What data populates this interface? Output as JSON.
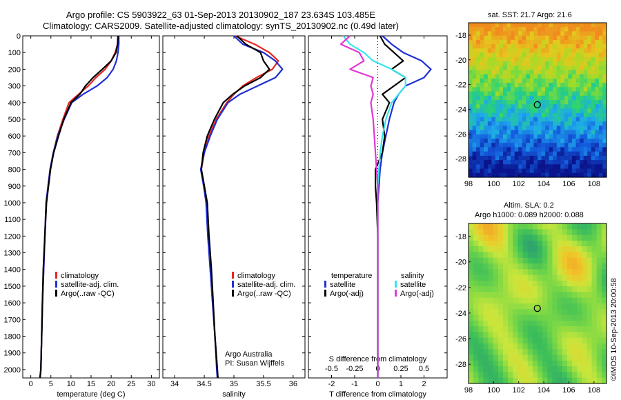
{
  "header": {
    "title_line1": "Argo profile: CS 5903922_63 01-Sep-2013 20130902_187 23.634S 103.485E",
    "title_line2": "Climatology: CARS2009. Satellite-adjusted climatology: synTS_20130902.nc (0.49d later)"
  },
  "colors": {
    "climatology": "#e8251f",
    "satellite": "#1f2fd6",
    "argo": "#000000",
    "satellite_s": "#36e6ea",
    "argo_s": "#e436d6"
  },
  "depth_ticks": [
    0,
    100,
    200,
    300,
    400,
    500,
    600,
    700,
    800,
    900,
    1000,
    1100,
    1200,
    1300,
    1400,
    1500,
    1600,
    1700,
    1800,
    1900,
    2000
  ],
  "chart_data": [
    {
      "type": "line",
      "xlabel": "temperature (deg C)",
      "xlim": [
        -2,
        32
      ],
      "ylim": [
        0,
        2050
      ],
      "xticks": [
        0,
        5,
        10,
        15,
        20,
        25,
        30
      ],
      "legend": [
        "climatology",
        "satellite-adj. clim.",
        "Argo(..raw -QC)"
      ],
      "series": [
        {
          "name": "climatology",
          "color": "#e8251f",
          "x": [
            21.7,
            21.6,
            21.0,
            20.0,
            18.5,
            16.2,
            14.3,
            11.9,
            9.5,
            8.0,
            6.6,
            5.6,
            4.8,
            4.3,
            3.8,
            3.5,
            3.2,
            2.9,
            2.7,
            2.5,
            2.3
          ],
          "y": [
            0,
            50,
            100,
            150,
            200,
            250,
            300,
            350,
            400,
            500,
            600,
            700,
            800,
            900,
            1000,
            1200,
            1400,
            1600,
            1800,
            2000,
            2050
          ]
        },
        {
          "name": "satellite-adj. clim.",
          "color": "#1f2fd6",
          "x": [
            21.9,
            21.9,
            21.7,
            21.3,
            20.5,
            19.0,
            16.5,
            13.0,
            10.2,
            8.3,
            6.7,
            5.6,
            4.8,
            4.3,
            3.8,
            3.5,
            3.2,
            2.9,
            2.7,
            2.5,
            2.3
          ],
          "y": [
            0,
            50,
            100,
            150,
            200,
            250,
            300,
            350,
            400,
            500,
            600,
            700,
            800,
            900,
            1000,
            1200,
            1400,
            1600,
            1800,
            2000,
            2050
          ]
        },
        {
          "name": "Argo(..raw -QC)",
          "color": "#000000",
          "x": [
            21.7,
            21.6,
            21.2,
            20.0,
            17.8,
            15.5,
            13.6,
            12.2,
            10.0,
            8.2,
            6.9,
            5.7,
            4.9,
            4.4,
            3.9,
            3.5,
            3.1,
            2.9,
            2.7,
            2.5,
            2.3
          ],
          "y": [
            0,
            50,
            100,
            150,
            200,
            250,
            300,
            350,
            400,
            500,
            600,
            700,
            800,
            900,
            1000,
            1200,
            1400,
            1600,
            1800,
            2000,
            2050
          ]
        }
      ]
    },
    {
      "type": "line",
      "xlabel": "salinity",
      "xlim": [
        33.8,
        36.2
      ],
      "ylim": [
        0,
        2050
      ],
      "xticks": [
        34,
        34.5,
        35,
        35.5,
        36
      ],
      "legend": [
        "climatology",
        "satellite-adj. clim.",
        "Argo(..raw -QC)"
      ],
      "annotation": [
        "Argo Australia",
        "PI: Susan Wijffels"
      ],
      "series": [
        {
          "name": "climatology",
          "color": "#e8251f",
          "x": [
            35.02,
            35.35,
            35.6,
            35.75,
            35.65,
            35.38,
            35.15,
            35.0,
            34.88,
            34.7,
            34.58,
            34.5,
            34.45,
            34.5,
            34.54,
            34.57,
            34.6,
            34.64,
            34.68,
            34.72,
            34.73
          ],
          "y": [
            0,
            50,
            100,
            150,
            200,
            250,
            300,
            350,
            400,
            500,
            600,
            700,
            800,
            900,
            1000,
            1200,
            1400,
            1600,
            1800,
            2000,
            2050
          ]
        },
        {
          "name": "satellite-adj. clim.",
          "color": "#1f2fd6",
          "x": [
            35.0,
            35.15,
            35.5,
            35.7,
            35.82,
            35.7,
            35.4,
            35.1,
            34.9,
            34.72,
            34.6,
            34.5,
            34.44,
            34.49,
            34.53,
            34.56,
            34.6,
            34.64,
            34.68,
            34.71,
            34.72
          ],
          "y": [
            0,
            50,
            100,
            150,
            200,
            250,
            300,
            350,
            400,
            500,
            600,
            700,
            800,
            900,
            1000,
            1200,
            1400,
            1600,
            1800,
            2000,
            2050
          ]
        },
        {
          "name": "Argo(..raw -QC)",
          "color": "#000000",
          "x": [
            35.05,
            35.2,
            35.45,
            35.5,
            35.6,
            35.45,
            35.18,
            34.98,
            34.82,
            34.67,
            34.55,
            34.48,
            34.45,
            34.5,
            34.55,
            34.58,
            34.62,
            34.65,
            34.68,
            34.72,
            34.73
          ],
          "y": [
            0,
            50,
            100,
            150,
            200,
            250,
            300,
            350,
            400,
            500,
            600,
            700,
            800,
            900,
            1000,
            1200,
            1400,
            1600,
            1800,
            2000,
            2050
          ]
        }
      ]
    },
    {
      "type": "line",
      "xlabel": "T difference from climatology",
      "title": "S difference from climatology",
      "xlim": [
        -3,
        3
      ],
      "ylim": [
        0,
        2050
      ],
      "xticks": [
        -2,
        -1,
        0,
        1,
        2
      ],
      "top_xticks": [
        -0.5,
        -0.25,
        0,
        0.25,
        0.5
      ],
      "top_xticklabels": [
        "-0.5",
        "-0.25",
        "0",
        "0.25",
        "0.5"
      ],
      "legend_groups": [
        "temperature",
        "salinity"
      ],
      "legend": [
        "satellite",
        "Argo(-adj)",
        "satellite",
        "Argo(-adj)"
      ],
      "series": [
        {
          "name": "temperature satellite",
          "color": "#1f2fd6",
          "x": [
            0.2,
            0.6,
            1.1,
            1.9,
            2.3,
            2.0,
            1.2,
            0.9,
            0.7,
            0.5,
            0.35,
            0.2,
            0.1,
            0.05,
            0.0,
            0.0,
            0.0,
            0.0,
            0.0,
            0.0,
            0.0
          ],
          "y": [
            0,
            50,
            100,
            150,
            200,
            250,
            300,
            350,
            400,
            500,
            600,
            700,
            800,
            900,
            1000,
            1200,
            1400,
            1600,
            1800,
            2000,
            2050
          ]
        },
        {
          "name": "temperature Argo(-adj)",
          "color": "#000000",
          "x": [
            0.1,
            0.3,
            0.7,
            1.1,
            0.6,
            1.2,
            0.7,
            0.2,
            0.5,
            0.2,
            0.3,
            0.2,
            -0.1,
            -0.1,
            -0.05,
            0.0,
            0.0,
            0.0,
            0.0,
            0.0,
            0.0
          ],
          "y": [
            0,
            50,
            100,
            150,
            200,
            250,
            300,
            350,
            400,
            500,
            600,
            700,
            800,
            900,
            1000,
            1200,
            1400,
            1600,
            1800,
            2000,
            2050
          ]
        },
        {
          "name": "salinity satellite",
          "color": "#36e6ea",
          "x": [
            -1.5,
            -1.2,
            -0.6,
            -0.2,
            0.6,
            1.2,
            1.2,
            0.9,
            0.6,
            0.35,
            0.2,
            0.1,
            0.05,
            0.0,
            0.0,
            0.0,
            0.0,
            0.0,
            0.0,
            0.0,
            0.0
          ],
          "y": [
            0,
            50,
            100,
            150,
            200,
            250,
            300,
            350,
            400,
            500,
            600,
            700,
            800,
            900,
            1000,
            1200,
            1400,
            1600,
            1800,
            2000,
            2050
          ]
        },
        {
          "name": "salinity Argo(-adj)",
          "color": "#e436d6",
          "x": [
            -1.2,
            -1.6,
            -0.8,
            -0.6,
            -1.2,
            -0.2,
            -0.3,
            -0.2,
            -0.3,
            -0.2,
            -0.15,
            -0.1,
            -0.05,
            0.0,
            0.0,
            0.0,
            0.0,
            0.0,
            0.0,
            0.0,
            0.0
          ],
          "y": [
            0,
            50,
            100,
            150,
            200,
            250,
            300,
            350,
            400,
            500,
            600,
            700,
            800,
            900,
            1000,
            1200,
            1400,
            1600,
            1800,
            2000,
            2050
          ]
        }
      ]
    }
  ],
  "maps": {
    "sst": {
      "title": "sat. SST: 21.7 Argo: 21.6",
      "xticks": [
        "98",
        "100",
        "102",
        "104",
        "106",
        "108"
      ],
      "yticks": [
        "-18",
        "-20",
        "-22",
        "-24",
        "-26",
        "-28"
      ],
      "x_range": [
        98,
        109
      ],
      "y_range": [
        -17,
        -29.5
      ],
      "marker": [
        103.485,
        -23.634
      ]
    },
    "ssh": {
      "title_line1": "Altim. SLA: 0.2",
      "title_line2": "Argo h1000: 0.089 h2000: 0.088",
      "xticks": [
        "98",
        "100",
        "102",
        "104",
        "106",
        "108"
      ],
      "yticks": [
        "-18",
        "-20",
        "-22",
        "-24",
        "-26",
        "-28"
      ],
      "x_range": [
        98,
        109
      ],
      "y_range": [
        -17,
        -29.5
      ],
      "marker": [
        103.485,
        -23.634
      ]
    }
  },
  "side_label": "©IMOS 10-Sep-2013 20:00:58"
}
